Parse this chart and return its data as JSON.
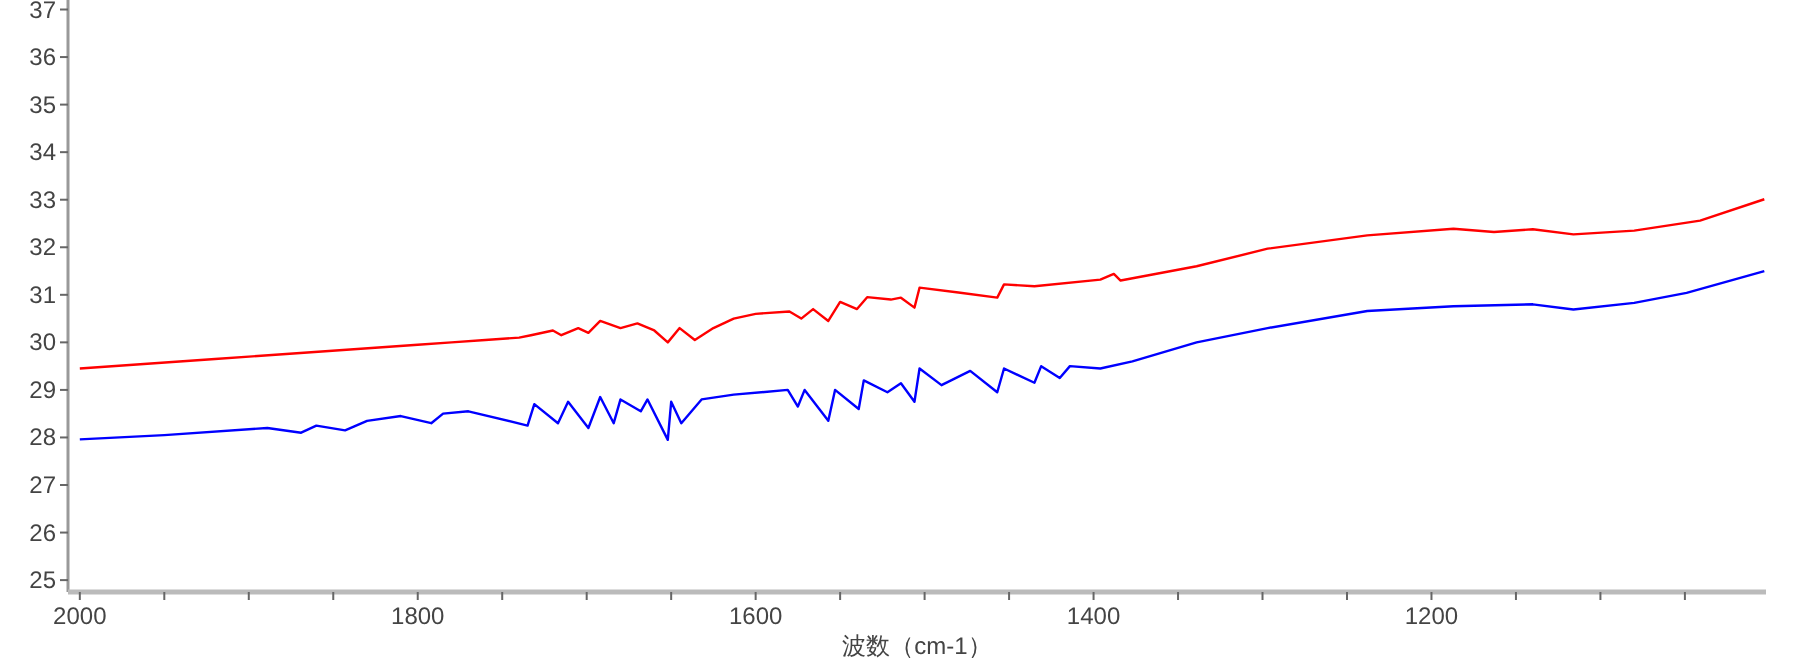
{
  "chart_data": {
    "type": "line",
    "xlabel": "波数（cm-1）",
    "xlim": [
      2007,
      1002
    ],
    "ylim": [
      24.75,
      37.2
    ],
    "xticks": [
      2000,
      {
        "value": 1950,
        "label": null
      },
      {
        "value": 1900,
        "label": null
      },
      {
        "value": 1850,
        "label": null
      },
      1800,
      {
        "value": 1750,
        "label": null
      },
      {
        "value": 1700,
        "label": null
      },
      {
        "value": 1650,
        "label": null
      },
      1600,
      {
        "value": 1550,
        "label": null
      },
      {
        "value": 1500,
        "label": null
      },
      {
        "value": 1450,
        "label": null
      },
      1400,
      {
        "value": 1350,
        "label": null
      },
      {
        "value": 1300,
        "label": null
      },
      {
        "value": 1250,
        "label": null
      },
      1200,
      {
        "value": 1150,
        "label": null
      },
      {
        "value": 1100,
        "label": null
      },
      {
        "value": 1050,
        "label": null
      }
    ],
    "yticks": [
      25,
      26,
      27,
      28,
      29,
      30,
      31,
      32,
      33,
      34,
      35,
      36,
      37
    ],
    "grid": false,
    "marker": "none",
    "line_style": "solid",
    "series": [
      {
        "color": "#ff0000",
        "x": [
          2000,
          1960,
          1920,
          1880,
          1840,
          1800,
          1780,
          1760,
          1740,
          1733,
          1720,
          1715,
          1705,
          1699,
          1692,
          1680,
          1670,
          1660,
          1652,
          1645,
          1636,
          1625,
          1613,
          1600,
          1580,
          1573,
          1566,
          1557,
          1550,
          1540,
          1534,
          1520,
          1514,
          1506,
          1503,
          1480,
          1457,
          1453,
          1435,
          1396,
          1388,
          1384,
          1339,
          1297,
          1238,
          1187,
          1163,
          1140,
          1116,
          1080,
          1041,
          1003
        ],
        "values": [
          29.45,
          29.55,
          29.65,
          29.75,
          29.85,
          29.95,
          30.0,
          30.05,
          30.1,
          30.15,
          30.25,
          30.15,
          30.3,
          30.2,
          30.45,
          30.3,
          30.4,
          30.25,
          30.0,
          30.3,
          30.05,
          30.3,
          30.5,
          30.6,
          30.65,
          30.5,
          30.7,
          30.45,
          30.85,
          30.7,
          30.95,
          30.9,
          30.94,
          30.73,
          31.15,
          31.05,
          30.94,
          31.22,
          31.18,
          31.32,
          31.44,
          31.3,
          31.6,
          31.97,
          32.25,
          32.39,
          32.32,
          32.38,
          32.27,
          32.35,
          32.56,
          33.01
        ]
      },
      {
        "color": "#0000ff",
        "x": [
          2000,
          1950,
          1889,
          1869,
          1860,
          1843,
          1830,
          1810,
          1792,
          1785,
          1770,
          1735,
          1731,
          1717,
          1711,
          1699,
          1692,
          1684,
          1680,
          1668,
          1664,
          1652,
          1650,
          1644,
          1632,
          1613,
          1581,
          1575,
          1571,
          1557,
          1553,
          1539,
          1536,
          1522,
          1514,
          1506,
          1503,
          1490,
          1473,
          1457,
          1453,
          1435,
          1431,
          1420,
          1414,
          1396,
          1377,
          1339,
          1297,
          1238,
          1187,
          1140,
          1116,
          1080,
          1049,
          1003
        ],
        "values": [
          27.96,
          28.05,
          28.2,
          28.1,
          28.25,
          28.15,
          28.35,
          28.45,
          28.3,
          28.5,
          28.55,
          28.25,
          28.7,
          28.3,
          28.75,
          28.2,
          28.85,
          28.3,
          28.8,
          28.55,
          28.8,
          27.95,
          28.75,
          28.3,
          28.8,
          28.9,
          29.0,
          28.65,
          29.0,
          28.35,
          29.0,
          28.6,
          29.2,
          28.95,
          29.14,
          28.75,
          29.45,
          29.1,
          29.4,
          28.95,
          29.45,
          29.15,
          29.5,
          29.25,
          29.5,
          29.45,
          29.6,
          30.0,
          30.3,
          30.66,
          30.76,
          30.8,
          30.69,
          30.83,
          31.04,
          31.5
        ]
      }
    ]
  }
}
